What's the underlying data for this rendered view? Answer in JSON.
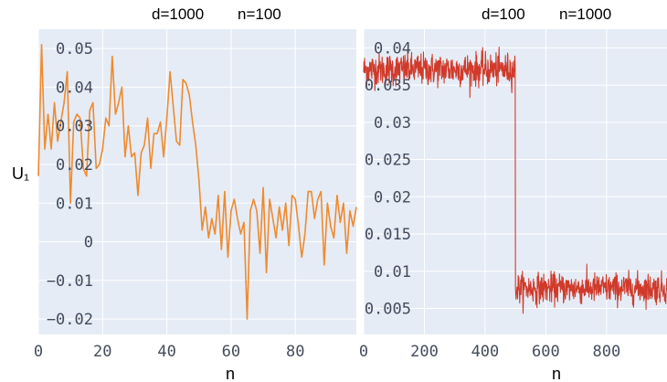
{
  "chart_data": [
    {
      "type": "line",
      "title_parts": [
        "d=1000",
        "n=100"
      ],
      "xlabel": "n",
      "ylabel": "U₁",
      "xlim": [
        0,
        99
      ],
      "ylim": [
        -0.024,
        0.055
      ],
      "xticks": [
        0,
        20,
        40,
        60,
        80
      ],
      "yticks": [
        0.05,
        0.04,
        0.03,
        0.02,
        0.01,
        0,
        -0.01,
        -0.02
      ],
      "ytick_labels": [
        "0.05",
        "0.04",
        "0.03",
        "0.02",
        "0.01",
        "0",
        "−0.01",
        "−0.02"
      ],
      "grid": true,
      "colors": {
        "line": "#ef8a2e",
        "plot_bg": "#e5ecf6",
        "grid": "#ffffff"
      },
      "series": [
        {
          "x": [
            0,
            1,
            2,
            3,
            4,
            5,
            6,
            7,
            8,
            9,
            10,
            11,
            12,
            13,
            14,
            15,
            16,
            17,
            18,
            19,
            20,
            21,
            22,
            23,
            24,
            25,
            26,
            27,
            28,
            29,
            30,
            31,
            32,
            33,
            34,
            35,
            36,
            37,
            38,
            39,
            40,
            41,
            42,
            43,
            44,
            45,
            46,
            47,
            48,
            49,
            50,
            51,
            52,
            53,
            54,
            55,
            56,
            57,
            58,
            59,
            60,
            61,
            62,
            63,
            64,
            65,
            66,
            67,
            68,
            69,
            70,
            71,
            72,
            73,
            74,
            75,
            76,
            77,
            78,
            79,
            80,
            81,
            82,
            83,
            84,
            85,
            86,
            87,
            88,
            89,
            90,
            91,
            92,
            93,
            94,
            95,
            96,
            97,
            98,
            99
          ],
          "y": [
            0.017,
            0.051,
            0.024,
            0.033,
            0.024,
            0.036,
            0.026,
            0.031,
            0.036,
            0.044,
            0.01,
            0.031,
            0.033,
            0.032,
            0.019,
            0.017,
            0.034,
            0.036,
            0.019,
            0.02,
            0.024,
            0.032,
            0.03,
            0.048,
            0.033,
            0.036,
            0.04,
            0.022,
            0.03,
            0.022,
            0.023,
            0.012,
            0.023,
            0.025,
            0.032,
            0.019,
            0.028,
            0.028,
            0.031,
            0.022,
            0.032,
            0.044,
            0.035,
            0.026,
            0.025,
            0.042,
            0.041,
            0.038,
            0.031,
            0.025,
            0.016,
            0.003,
            0.009,
            0.001,
            0.006,
            0.002,
            0.012,
            -0.002,
            0.013,
            -0.004,
            0.008,
            0.011,
            0.006,
            0.002,
            0.005,
            -0.02,
            0.008,
            0.011,
            0.008,
            -0.003,
            0.014,
            -0.008,
            0.011,
            0.006,
            0.001,
            0.009,
            0.003,
            0.01,
            -0.001,
            0.012,
            0.011,
            0.004,
            -0.004,
            0.002,
            0.013,
            0.013,
            0.006,
            0.011,
            0.013,
            -0.006,
            0.01,
            0.004,
            0.001,
            0.012,
            0.005,
            0.01,
            -0.003,
            0.008,
            0.004,
            0.009
          ]
        }
      ]
    },
    {
      "type": "line",
      "title_parts": [
        "d=100",
        "n=1000"
      ],
      "xlabel": "n",
      "ylabel": "",
      "xlim": [
        0,
        999
      ],
      "ylim": [
        0.0015,
        0.0425
      ],
      "xticks": [
        0,
        200,
        400,
        600,
        800
      ],
      "yticks": [
        0.04,
        0.035,
        0.03,
        0.025,
        0.02,
        0.015,
        0.01,
        0.005
      ],
      "ytick_labels": [
        "0.04",
        "0.035",
        "0.03",
        "0.025",
        "0.02",
        "0.015",
        "0.01",
        "0.005"
      ],
      "grid": true,
      "colors": {
        "line": "#d03a2a",
        "plot_bg": "#e5ecf6",
        "grid": "#ffffff"
      },
      "series": [
        {
          "segments": [
            {
              "x_start": 0,
              "x_end": 499,
              "mean": 0.0371,
              "noise": 0.0024
            },
            {
              "x_start": 500,
              "x_end": 999,
              "mean": 0.0077,
              "noise": 0.0022
            }
          ]
        }
      ]
    }
  ]
}
